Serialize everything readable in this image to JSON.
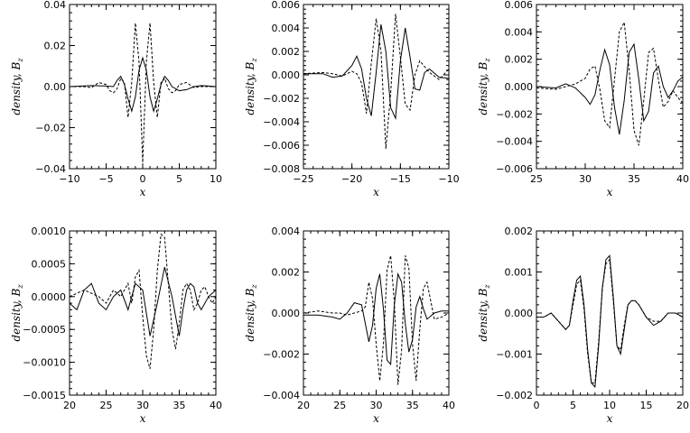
{
  "chart_data": [
    {
      "type": "line",
      "xlabel": "x",
      "ylabel": "density, B_z",
      "ylabel_main": "density, B",
      "ylabel_sub": "z",
      "xlim": [
        -10,
        10
      ],
      "ylim": [
        -0.04,
        0.04
      ],
      "xticks": [
        -10,
        -5,
        0,
        5,
        10
      ],
      "xtick_labels": [
        "−10",
        "−5",
        "0",
        "5",
        "10"
      ],
      "yticks": [
        -0.04,
        -0.02,
        0.0,
        0.02,
        0.04
      ],
      "ytick_labels": [
        "−0.04",
        "−0.02",
        "0.00",
        "0.02",
        "0.04"
      ],
      "series": [
        {
          "style": "solid",
          "x": [
            -10,
            -7,
            -5,
            -4,
            -3.5,
            -3,
            -2.5,
            -2,
            -1.5,
            -1,
            -0.5,
            0,
            0.5,
            1,
            1.5,
            2,
            2.5,
            3,
            3.5,
            4,
            5,
            6,
            7,
            8,
            9,
            10
          ],
          "y": [
            0,
            0.0005,
            0.0003,
            0,
            0.003,
            0.005,
            0.001,
            -0.006,
            -0.012,
            -0.005,
            0.008,
            0.014,
            0.008,
            -0.005,
            -0.012,
            -0.006,
            0.001,
            0.005,
            0.003,
            0,
            -0.002,
            -0.0015,
            0,
            0.0005,
            0.0003,
            0
          ]
        },
        {
          "style": "dashed",
          "x": [
            -10,
            -8,
            -7,
            -6,
            -5,
            -4.5,
            -4,
            -3.5,
            -3,
            -2.5,
            -2,
            -1.5,
            -1,
            -0.5,
            0,
            0.5,
            1,
            1.5,
            2,
            2.5,
            3,
            3.5,
            4,
            4.5,
            5,
            6,
            7,
            8,
            10
          ],
          "y": [
            0,
            0,
            -0.0005,
            0.002,
            0.001,
            -0.002,
            -0.003,
            -0.001,
            0.004,
            0.002,
            -0.015,
            0.002,
            0.031,
            0.012,
            -0.037,
            0.012,
            0.031,
            0.002,
            -0.015,
            0.002,
            0.004,
            -0.001,
            -0.003,
            -0.002,
            0.001,
            0.002,
            -0.0005,
            0,
            0
          ]
        }
      ]
    },
    {
      "type": "line",
      "xlabel": "x",
      "ylabel": "density, B_z",
      "ylabel_main": "density, B",
      "ylabel_sub": "z",
      "xlim": [
        -25,
        -10
      ],
      "ylim": [
        -0.008,
        0.006
      ],
      "xticks": [
        -25,
        -20,
        -15,
        -10
      ],
      "xtick_labels": [
        "−25",
        "−20",
        "−15",
        "−10"
      ],
      "yticks": [
        -0.008,
        -0.006,
        -0.004,
        -0.002,
        0.0,
        0.002,
        0.004,
        0.006
      ],
      "ytick_labels": [
        "−0.008",
        "−0.006",
        "−0.004",
        "−0.002",
        "0.000",
        "0.002",
        "0.004",
        "0.006"
      ],
      "series": [
        {
          "style": "solid",
          "x": [
            -25,
            -23,
            -22,
            -21,
            -20,
            -19.5,
            -19,
            -18.5,
            -18,
            -17.5,
            -17,
            -16.5,
            -16,
            -15.5,
            -15,
            -14.5,
            -14,
            -13.5,
            -13,
            -12.5,
            -12,
            -11,
            -10
          ],
          "y": [
            0.0001,
            0.0001,
            -0.0002,
            -0.0001,
            0.0008,
            0.0016,
            0.0005,
            -0.002,
            -0.0035,
            0.0002,
            0.0043,
            0.002,
            -0.0028,
            -0.0037,
            0.0012,
            0.004,
            0.0015,
            -0.0012,
            -0.0013,
            0.0002,
            0.0005,
            -0.0002,
            -0.0003
          ]
        },
        {
          "style": "dashed",
          "x": [
            -25,
            -23,
            -22,
            -21,
            -20,
            -19.5,
            -19,
            -18.5,
            -18,
            -17.5,
            -17,
            -16.5,
            -16,
            -15.5,
            -15,
            -14.5,
            -14,
            -13.5,
            -13,
            -12,
            -11,
            -10
          ],
          "y": [
            0.0001,
            0.0002,
            0.0001,
            -0.0001,
            0.0003,
            0.0001,
            -0.0007,
            -0.0033,
            0.001,
            0.0048,
            0.002,
            -0.0063,
            -0.0015,
            0.0052,
            0.0015,
            -0.0025,
            -0.003,
            0,
            0.0012,
            0.0002,
            -0.0004,
            0.0005
          ]
        }
      ]
    },
    {
      "type": "line",
      "xlabel": "x",
      "ylabel": "density, B_z",
      "ylabel_main": "density, B",
      "ylabel_sub": "z",
      "xlim": [
        25,
        40
      ],
      "ylim": [
        -0.006,
        0.006
      ],
      "xticks": [
        25,
        30,
        35,
        40
      ],
      "xtick_labels": [
        "25",
        "30",
        "35",
        "40"
      ],
      "yticks": [
        -0.006,
        -0.004,
        -0.002,
        0.0,
        0.002,
        0.004,
        0.006
      ],
      "ytick_labels": [
        "−0.006",
        "−0.004",
        "−0.002",
        "0.000",
        "0.002",
        "0.004",
        "0.006"
      ],
      "series": [
        {
          "style": "solid",
          "x": [
            25,
            27,
            28,
            29,
            30,
            30.5,
            31,
            31.5,
            32,
            32.5,
            33,
            33.5,
            34,
            34.5,
            35,
            35.5,
            36,
            36.5,
            37,
            37.5,
            38,
            38.5,
            39,
            39.5,
            40
          ],
          "y": [
            0,
            -0.0001,
            0.0002,
            -0.0001,
            -0.0008,
            -0.0013,
            -0.0006,
            0.0012,
            0.0027,
            0.0016,
            -0.0015,
            -0.0035,
            -0.001,
            0.0025,
            0.0031,
            0.0005,
            -0.0025,
            -0.0018,
            0.001,
            0.0015,
            0,
            -0.0008,
            -0.0003,
            0.0004,
            0.0007
          ]
        },
        {
          "style": "dashed",
          "x": [
            25,
            27,
            28,
            29,
            30,
            30.5,
            31,
            31.5,
            32,
            32.5,
            33,
            33.5,
            34,
            34.5,
            35,
            35.5,
            36,
            36.5,
            37,
            37.5,
            38,
            38.5,
            39,
            39.5,
            40
          ],
          "y": [
            -0.0001,
            -0.0002,
            0,
            0.0002,
            0.0006,
            0.0013,
            0.0015,
            -0.0002,
            -0.0025,
            -0.003,
            0.0005,
            0.004,
            0.0047,
            0.0012,
            -0.0032,
            -0.0043,
            -0.001,
            0.0025,
            0.0028,
            0.0005,
            -0.0015,
            -0.0011,
            -0.0003,
            -0.0008,
            -0.0012
          ]
        }
      ]
    },
    {
      "type": "line",
      "xlabel": "x",
      "ylabel": "density, B_z",
      "ylabel_main": "density, B",
      "ylabel_sub": "z",
      "xlim": [
        20,
        40
      ],
      "ylim": [
        -0.0015,
        0.001
      ],
      "xticks": [
        20,
        25,
        30,
        35,
        40
      ],
      "xtick_labels": [
        "20",
        "25",
        "30",
        "35",
        "40"
      ],
      "yticks": [
        -0.0015,
        -0.001,
        -0.0005,
        0.0,
        0.0005,
        0.001
      ],
      "ytick_labels": [
        "−0.0015",
        "−0.0010",
        "−0.0005",
        "0.0000",
        "0.0005",
        "0.0010"
      ],
      "series": [
        {
          "style": "solid",
          "x": [
            20,
            21,
            22,
            23,
            24,
            25,
            26,
            27,
            28,
            29,
            30,
            31,
            32,
            33,
            34,
            35,
            35.5,
            36,
            36.5,
            37,
            37.5,
            38,
            38.5,
            39,
            40
          ],
          "y": [
            -0.0001,
            -0.0002,
            0.0001,
            0.0002,
            -0.0001,
            -0.0002,
            0,
            0.0001,
            -0.0002,
            0.0002,
            0.0001,
            -0.0006,
            -0.0001,
            0.00045,
            0,
            -0.0006,
            -0.0002,
            0.0001,
            0.0002,
            0.00015,
            -0.0001,
            -0.0002,
            -0.0001,
            0,
            0.0001
          ]
        },
        {
          "style": "dashed",
          "x": [
            20,
            22,
            24,
            25,
            26,
            27,
            27.5,
            28,
            28.5,
            29,
            29.5,
            30,
            30.5,
            31,
            31.5,
            32,
            32.5,
            33,
            33.5,
            34,
            34.5,
            35,
            35.5,
            36,
            36.5,
            37,
            37.5,
            38,
            38.5,
            39,
            39.5,
            40
          ],
          "y": [
            0,
            0.0001,
            0,
            -0.0001,
            0.0001,
            0,
            0.0001,
            0.0002,
            -0.0001,
            0.0003,
            0.0004,
            -0.0003,
            -0.0009,
            -0.0011,
            -0.0005,
            0.0004,
            0.00095,
            0.0009,
            0.0002,
            -0.0005,
            -0.0008,
            -0.0004,
            0.0001,
            0.0002,
            0.0001,
            -0.0002,
            -0.0001,
            0.0001,
            0.00015,
            0,
            -0.0001,
            0
          ]
        }
      ]
    },
    {
      "type": "line",
      "xlabel": "x",
      "ylabel": "density, B_z",
      "ylabel_main": "density, B",
      "ylabel_sub": "z",
      "xlim": [
        20,
        40
      ],
      "ylim": [
        -0.004,
        0.004
      ],
      "xticks": [
        20,
        25,
        30,
        35,
        40
      ],
      "xtick_labels": [
        "20",
        "25",
        "30",
        "35",
        "40"
      ],
      "yticks": [
        -0.004,
        -0.002,
        0.0,
        0.002,
        0.004
      ],
      "ytick_labels": [
        "−0.004",
        "−0.002",
        "0.000",
        "0.002",
        "0.004"
      ],
      "series": [
        {
          "style": "solid",
          "x": [
            20,
            22,
            24,
            25,
            26,
            27,
            28,
            28.5,
            29,
            29.5,
            30,
            30.5,
            31,
            31.5,
            32,
            32.5,
            33,
            33.5,
            34,
            34.5,
            35,
            35.5,
            36,
            36.5,
            37,
            38,
            39,
            40
          ],
          "y": [
            -0.0001,
            -0.0001,
            -0.0002,
            -0.0003,
            0,
            0.0005,
            0.0004,
            -0.0005,
            -0.0014,
            -0.0006,
            0.0012,
            0.0019,
            0.0002,
            -0.0023,
            -0.0025,
            0.0004,
            0.0019,
            0.0015,
            -0.0005,
            -0.0019,
            -0.0013,
            0.0003,
            0.0008,
            0.0002,
            -0.0003,
            0,
            0.0001,
            0.0001
          ]
        },
        {
          "style": "dashed",
          "x": [
            20,
            22,
            24,
            25,
            26,
            27,
            28,
            28.5,
            29,
            29.5,
            30,
            30.5,
            31,
            31.5,
            32,
            32.5,
            33,
            33.5,
            34,
            34.5,
            35,
            35.5,
            36,
            36.5,
            37,
            38,
            39,
            40
          ],
          "y": [
            0,
            0.0001,
            0,
            0,
            -0.0001,
            0,
            0.0001,
            0.0003,
            0.0015,
            0.0007,
            -0.0015,
            -0.0033,
            -0.0015,
            0.0021,
            0.0028,
            0.0005,
            -0.0035,
            -0.0018,
            0.0028,
            0.0022,
            -0.0015,
            -0.0033,
            -0.0008,
            0.0012,
            0.0015,
            -0.0003,
            -0.0002,
            0
          ]
        }
      ]
    },
    {
      "type": "line",
      "xlabel": "x",
      "ylabel": "density, B_z",
      "ylabel_main": "density, B",
      "ylabel_sub": "z",
      "xlim": [
        0,
        20
      ],
      "ylim": [
        -0.002,
        0.002
      ],
      "xticks": [
        0,
        5,
        10,
        15,
        20
      ],
      "xtick_labels": [
        "0",
        "5",
        "10",
        "15",
        "20"
      ],
      "yticks": [
        -0.002,
        -0.001,
        0.0,
        0.001,
        0.002
      ],
      "ytick_labels": [
        "−0.002",
        "−0.001",
        "0.000",
        "0.001",
        "0.002"
      ],
      "series": [
        {
          "style": "solid",
          "x": [
            0,
            1,
            2,
            3,
            4,
            4.5,
            5,
            5.5,
            6,
            6.5,
            7,
            7.5,
            8,
            8.5,
            9,
            9.5,
            10,
            10.5,
            11,
            11.5,
            12,
            12.5,
            13,
            13.5,
            14,
            15,
            16,
            17,
            18,
            19,
            20
          ],
          "y": [
            -0.0001,
            -0.0001,
            0,
            -0.0002,
            -0.0004,
            -0.0003,
            0.0003,
            0.0008,
            0.0009,
            0.0002,
            -0.0009,
            -0.0017,
            -0.0018,
            -0.0008,
            0.0006,
            0.0013,
            0.0014,
            0.0004,
            -0.0008,
            -0.001,
            -0.0004,
            0.0002,
            0.0003,
            0.0003,
            0.0002,
            -0.0001,
            -0.0003,
            -0.0002,
            0,
            0,
            -0.0001
          ]
        },
        {
          "style": "dashed",
          "x": [
            0,
            1,
            2,
            3,
            4,
            4.5,
            5,
            5.5,
            6,
            6.5,
            7,
            7.5,
            8,
            8.5,
            9,
            9.5,
            10,
            10.5,
            11,
            11.5,
            12,
            12.5,
            13,
            13.5,
            14,
            15,
            16,
            17,
            18,
            19,
            20
          ],
          "y": [
            -0.0001,
            -0.0001,
            0,
            -0.0002,
            -0.0004,
            -0.0003,
            0.0002,
            0.0007,
            0.0008,
            0.0001,
            -0.001,
            -0.0017,
            -0.0017,
            -0.0007,
            0.0006,
            0.0012,
            0.0013,
            0.0003,
            -0.0008,
            -0.0009,
            -0.0003,
            0.0002,
            0.0003,
            0.0003,
            0.0002,
            -0.0001,
            -0.0002,
            -0.0002,
            0,
            0,
            -0.0001
          ]
        }
      ]
    }
  ]
}
